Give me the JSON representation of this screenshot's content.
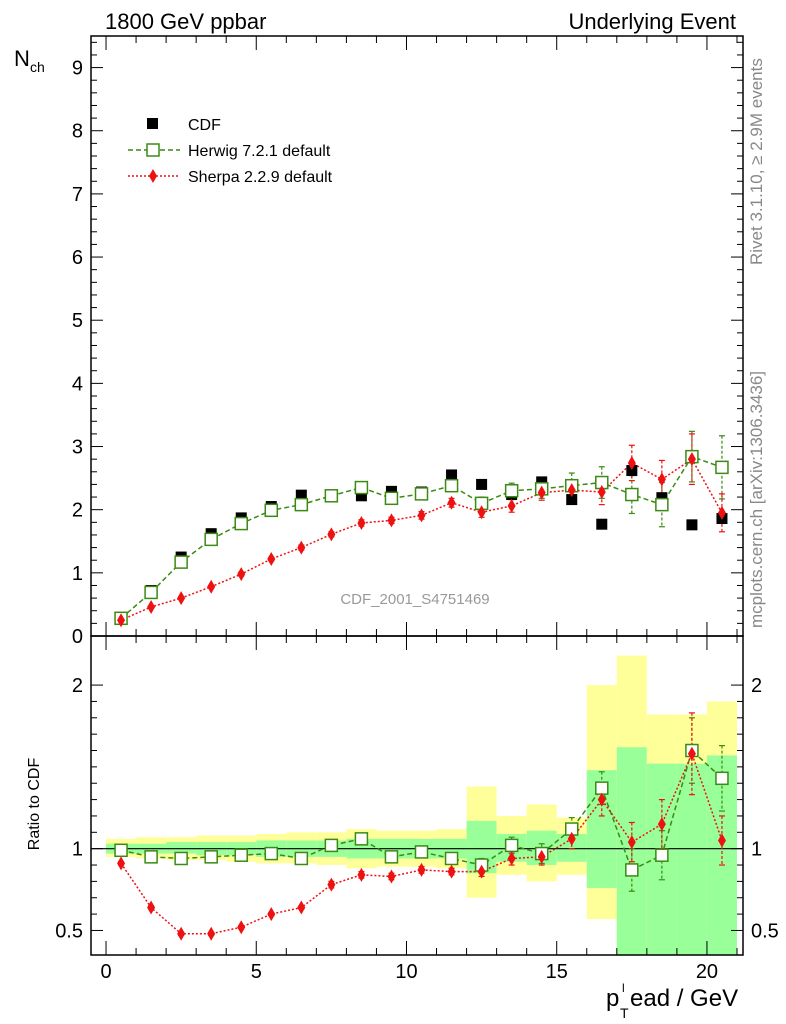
{
  "header": {
    "left": "1800 GeV ppbar",
    "right": "Underlying Event",
    "side_top": "Rivet 3.1.10, ≥ 2.9M events",
    "side_bottom": "mcplots.cern.ch [arXiv:1306.3436]",
    "analysis_id": "CDF_2001_S4751469"
  },
  "colors": {
    "cdf": "#000000",
    "herwig": "#3a8a14",
    "sherpa": "#ee1111",
    "band_outer": "#ffff99",
    "band_inner": "#99ff99"
  },
  "chart_data": [
    {
      "type": "scatter",
      "ylabel_main": "N",
      "ylabel_sub": "ch",
      "xlim": [
        -0.5,
        21.2
      ],
      "ylim": [
        0,
        9.5
      ],
      "yticks": [
        "0",
        "1",
        "2",
        "3",
        "4",
        "5",
        "6",
        "7",
        "8",
        "9"
      ],
      "legend_position": "top-left",
      "x": [
        0.5,
        1.5,
        2.5,
        3.5,
        4.5,
        5.5,
        6.5,
        7.5,
        8.5,
        9.5,
        10.5,
        11.5,
        12.5,
        13.5,
        14.5,
        15.5,
        16.5,
        17.5,
        18.5,
        19.5,
        20.5
      ],
      "series": [
        {
          "name": "CDF",
          "key": "cdf",
          "values": [
            0.28,
            0.72,
            1.25,
            1.62,
            1.87,
            2.05,
            2.23,
            2.21,
            2.22,
            2.29,
            2.28,
            2.55,
            2.4,
            2.24,
            2.44,
            2.16,
            1.77,
            2.62,
            2.19,
            1.76,
            1.86
          ]
        },
        {
          "name": "Herwig 7.2.1 default",
          "key": "herwig",
          "values": [
            0.28,
            0.69,
            1.17,
            1.53,
            1.78,
            1.99,
            2.08,
            2.22,
            2.35,
            2.18,
            2.25,
            2.38,
            2.1,
            2.3,
            2.33,
            2.38,
            2.43,
            2.24,
            2.08,
            2.84,
            2.67
          ],
          "errors": [
            0.01,
            0.01,
            0.02,
            0.02,
            0.03,
            0.03,
            0.04,
            0.05,
            0.05,
            0.06,
            0.07,
            0.08,
            0.1,
            0.12,
            0.15,
            0.2,
            0.25,
            0.3,
            0.35,
            0.4,
            0.5
          ]
        },
        {
          "name": "Sherpa 2.2.9 default",
          "key": "sherpa",
          "values": [
            0.25,
            0.46,
            0.6,
            0.78,
            0.98,
            1.22,
            1.4,
            1.61,
            1.79,
            1.83,
            1.91,
            2.11,
            1.96,
            2.06,
            2.27,
            2.31,
            2.28,
            2.74,
            2.48,
            2.8,
            1.95
          ],
          "errors": [
            0.01,
            0.01,
            0.02,
            0.02,
            0.03,
            0.03,
            0.04,
            0.04,
            0.05,
            0.05,
            0.06,
            0.07,
            0.08,
            0.1,
            0.12,
            0.15,
            0.2,
            0.28,
            0.3,
            0.4,
            0.3
          ]
        }
      ]
    },
    {
      "type": "scatter",
      "ylabel": "Ratio to CDF",
      "xlabel_main": "p",
      "xlabel_sup": "l",
      "xlabel_sub": "T",
      "xlabel_rest": "ead / GeV",
      "xlim": [
        -0.5,
        21.2
      ],
      "ylim": [
        0.35,
        2.3
      ],
      "xticks": [
        0,
        5,
        10,
        15,
        20
      ],
      "xtick_labels": [
        "0",
        "5",
        "10",
        "15",
        "20"
      ],
      "yticks": [
        0.5,
        1,
        2
      ],
      "ytick_labels": [
        "0.5",
        "1",
        "2"
      ],
      "reference_line": 1,
      "x": [
        0.5,
        1.5,
        2.5,
        3.5,
        4.5,
        5.5,
        6.5,
        7.5,
        8.5,
        9.5,
        10.5,
        11.5,
        12.5,
        13.5,
        14.5,
        15.5,
        16.5,
        17.5,
        18.5,
        19.5,
        20.5
      ],
      "band_outer": [
        [
          0.95,
          1.06
        ],
        [
          0.94,
          1.07
        ],
        [
          0.93,
          1.07
        ],
        [
          0.93,
          1.08
        ],
        [
          0.92,
          1.08
        ],
        [
          0.91,
          1.09
        ],
        [
          0.91,
          1.1
        ],
        [
          0.9,
          1.1
        ],
        [
          0.88,
          1.12
        ],
        [
          0.89,
          1.11
        ],
        [
          0.89,
          1.11
        ],
        [
          0.88,
          1.12
        ],
        [
          0.7,
          1.38
        ],
        [
          0.84,
          1.2
        ],
        [
          0.8,
          1.27
        ],
        [
          0.84,
          1.19
        ],
        [
          0.57,
          2.0
        ],
        [
          0.3,
          2.18
        ],
        [
          0.3,
          1.82
        ],
        [
          0.3,
          1.82
        ],
        [
          0.3,
          1.9
        ]
      ],
      "band_inner": [
        [
          0.97,
          1.03
        ],
        [
          0.97,
          1.03
        ],
        [
          0.97,
          1.04
        ],
        [
          0.96,
          1.04
        ],
        [
          0.96,
          1.04
        ],
        [
          0.95,
          1.05
        ],
        [
          0.95,
          1.05
        ],
        [
          0.95,
          1.05
        ],
        [
          0.94,
          1.06
        ],
        [
          0.94,
          1.06
        ],
        [
          0.94,
          1.06
        ],
        [
          0.94,
          1.06
        ],
        [
          0.85,
          1.17
        ],
        [
          0.92,
          1.09
        ],
        [
          0.9,
          1.11
        ],
        [
          0.92,
          1.09
        ],
        [
          0.76,
          1.48
        ],
        [
          0.3,
          1.62
        ],
        [
          0.3,
          1.52
        ],
        [
          0.3,
          1.52
        ],
        [
          0.3,
          1.57
        ]
      ],
      "series": [
        {
          "name": "Herwig 7.2.1 default",
          "key": "herwig",
          "values": [
            0.99,
            0.95,
            0.94,
            0.95,
            0.96,
            0.97,
            0.94,
            1.02,
            1.06,
            0.95,
            0.98,
            0.94,
            0.9,
            1.02,
            0.97,
            1.12,
            1.37,
            0.87,
            0.96,
            1.6,
            1.43
          ],
          "errors": [
            0.01,
            0.01,
            0.01,
            0.01,
            0.01,
            0.02,
            0.02,
            0.02,
            0.02,
            0.02,
            0.03,
            0.03,
            0.04,
            0.05,
            0.06,
            0.07,
            0.1,
            0.13,
            0.15,
            0.2,
            0.2
          ]
        },
        {
          "name": "Sherpa 2.2.9 default",
          "key": "sherpa",
          "values": [
            0.91,
            0.64,
            0.48,
            0.48,
            0.52,
            0.6,
            0.64,
            0.78,
            0.84,
            0.83,
            0.87,
            0.86,
            0.86,
            0.94,
            0.95,
            1.06,
            1.3,
            1.04,
            1.15,
            1.58,
            1.05
          ],
          "errors": [
            0.01,
            0.01,
            0.01,
            0.01,
            0.01,
            0.01,
            0.01,
            0.02,
            0.02,
            0.02,
            0.02,
            0.02,
            0.03,
            0.04,
            0.05,
            0.06,
            0.1,
            0.12,
            0.15,
            0.25,
            0.15
          ]
        }
      ]
    }
  ]
}
